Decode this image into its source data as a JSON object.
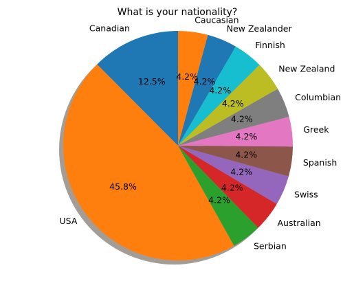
{
  "chart_data": {
    "type": "pie",
    "title": "What is your nationality?",
    "start_angle_deg": 90,
    "direction": "counterclockwise",
    "shadow": true,
    "labels": [
      "Canadian",
      "USA",
      "Serbian",
      "Australian",
      "Swiss",
      "Spanish",
      "Greek",
      "Columbian",
      "New Zealand",
      "Finnish",
      "New Zealander",
      "Caucasian"
    ],
    "values": [
      12.5,
      45.8,
      4.2,
      4.2,
      4.2,
      4.2,
      4.2,
      4.2,
      4.2,
      4.2,
      4.2,
      4.2
    ],
    "percent_labels": [
      "12.5%",
      "45.8%",
      "4.2%",
      "4.2%",
      "4.2%",
      "4.2%",
      "4.2%",
      "4.2%",
      "4.2%",
      "4.2%",
      "4.2%",
      "4.2%"
    ],
    "colors": [
      "#1f77b4",
      "#ff7f0e",
      "#2ca02c",
      "#d62728",
      "#9467bd",
      "#8c564b",
      "#e377c2",
      "#7f7f7f",
      "#bcbd22",
      "#17becf",
      "#1f77b4",
      "#ff7f0e"
    ],
    "shadow_color": "#a39d96"
  }
}
